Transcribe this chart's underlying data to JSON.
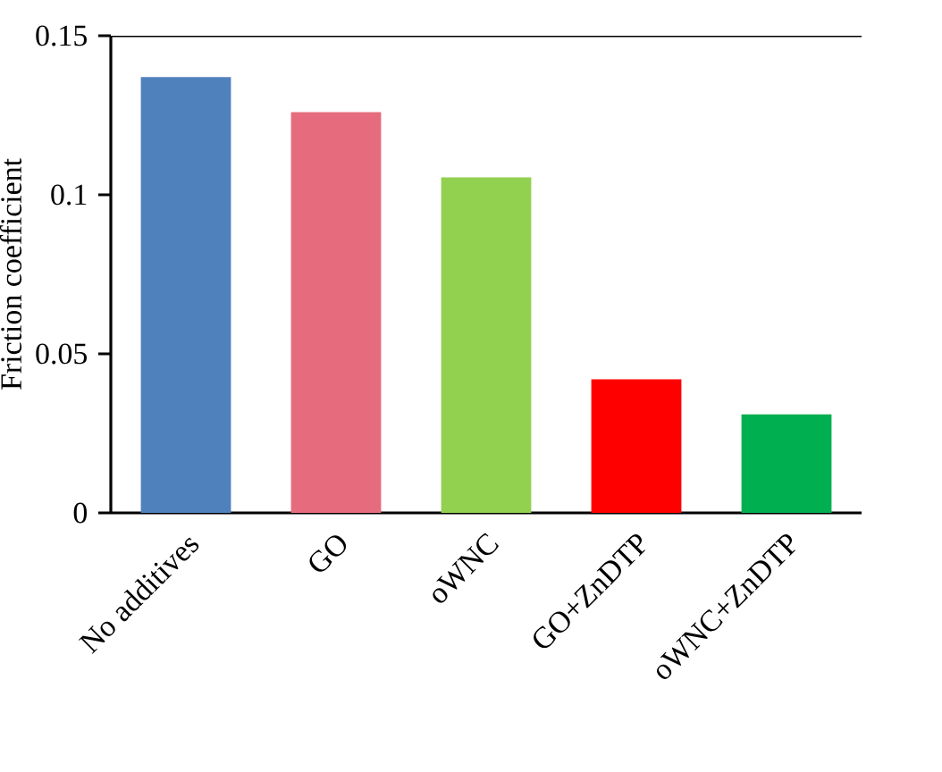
{
  "chart_data": {
    "type": "bar",
    "ylabel": "Friction coefficient",
    "categories": [
      "No additives",
      "GO",
      "oWNC",
      "GO+ZnDTP",
      "oWNC+ZnDTP"
    ],
    "values": [
      0.137,
      0.126,
      0.1055,
      0.042,
      0.031
    ],
    "colors": [
      "#4f81bd",
      "#e66c7d",
      "#92d050",
      "#ff0000",
      "#00b050"
    ],
    "ylim": [
      0,
      0.15
    ],
    "yticks": [
      0,
      0.05,
      0.1,
      0.15
    ]
  }
}
